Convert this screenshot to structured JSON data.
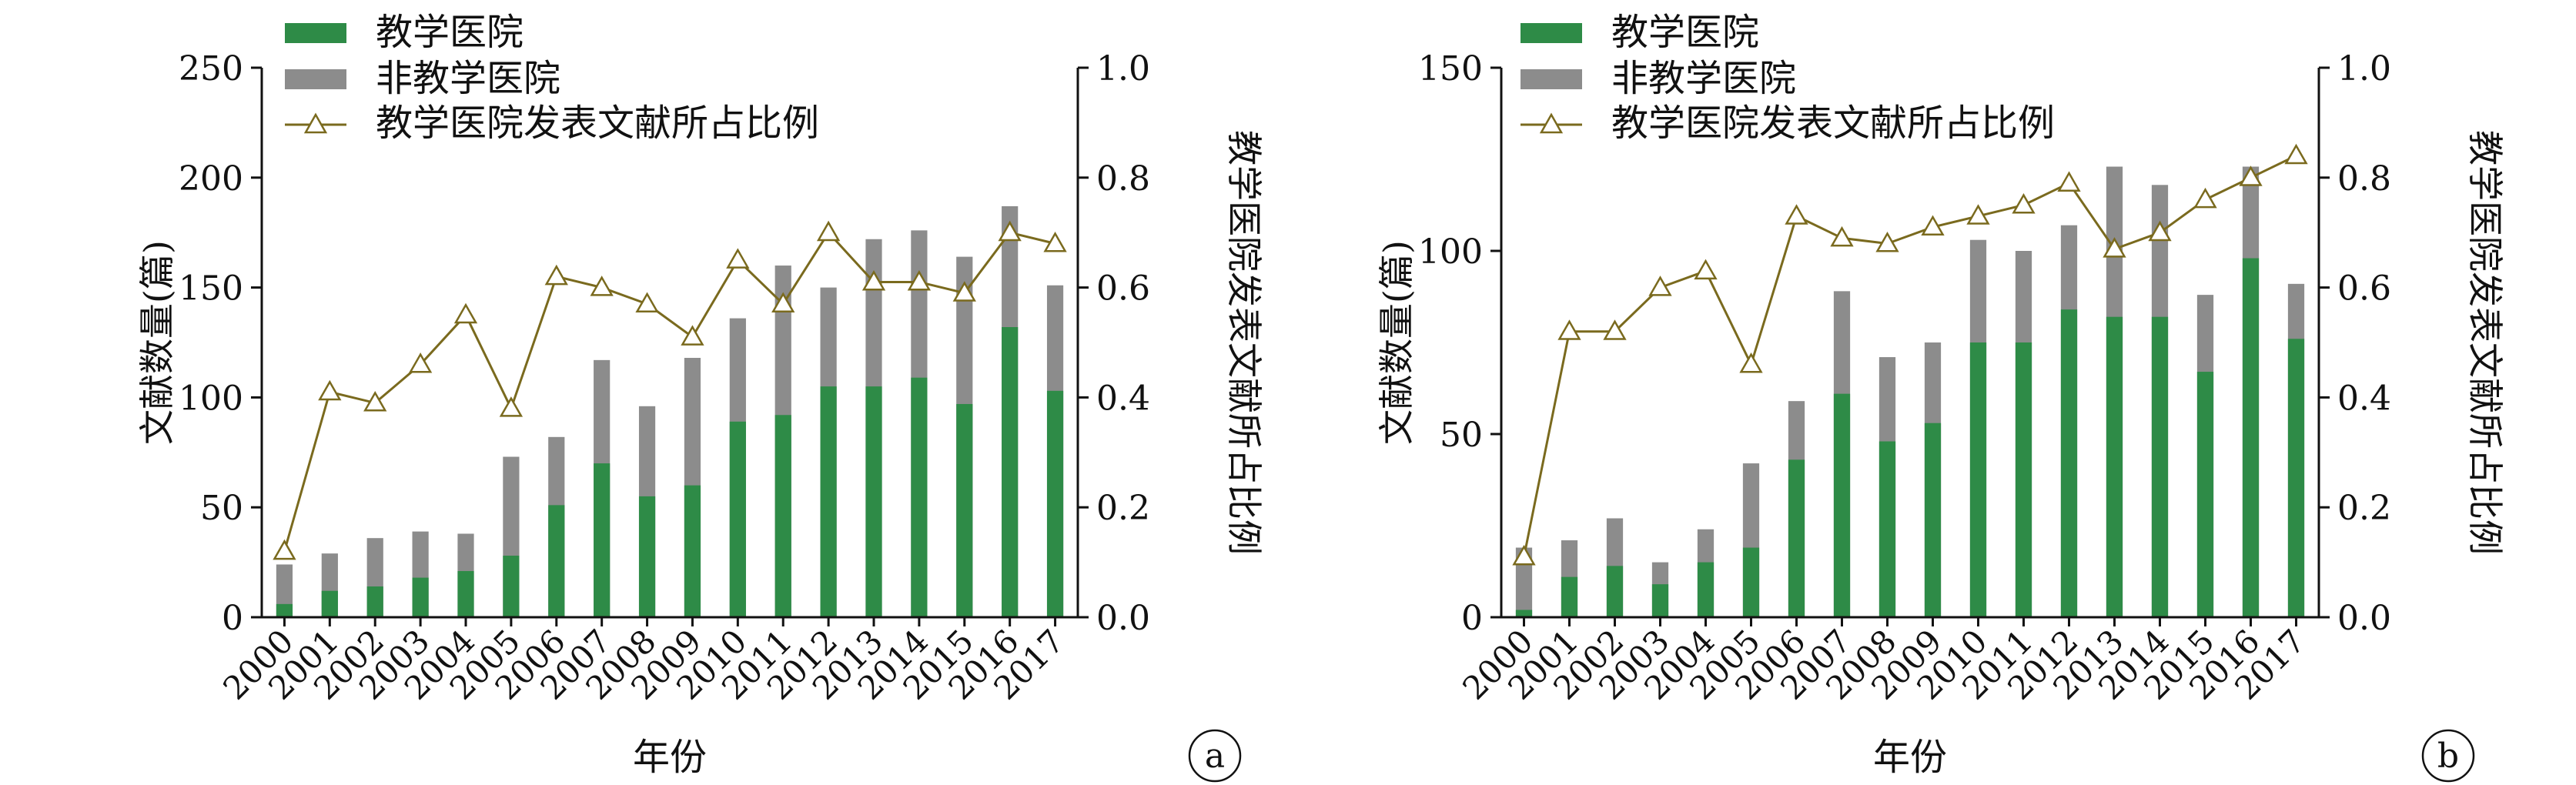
{
  "chart_data": [
    {
      "panel_label": "a",
      "type": "bar",
      "bar_mode": "overlay",
      "categories": [
        "2000",
        "2001",
        "2002",
        "2003",
        "2004",
        "2005",
        "2006",
        "2007",
        "2008",
        "2009",
        "2010",
        "2011",
        "2012",
        "2013",
        "2014",
        "2015",
        "2016",
        "2017"
      ],
      "series": [
        {
          "name": "教学医院",
          "type": "bar",
          "axis": "left",
          "color": "#2e8b47",
          "values": [
            6,
            12,
            14,
            18,
            21,
            28,
            51,
            70,
            55,
            60,
            89,
            92,
            105,
            105,
            109,
            97,
            132,
            103
          ]
        },
        {
          "name": "非教学医院",
          "type": "bar",
          "axis": "left",
          "color": "#8c8c8c",
          "values": [
            24,
            29,
            36,
            39,
            38,
            73,
            82,
            117,
            96,
            118,
            136,
            160,
            150,
            172,
            176,
            164,
            187,
            151
          ]
        },
        {
          "name": "教学医院发表文献所占比例",
          "type": "line",
          "axis": "right",
          "color": "#7a6a1e",
          "marker": "triangle-open",
          "values": [
            0.12,
            0.41,
            0.39,
            0.46,
            0.55,
            0.38,
            0.62,
            0.6,
            0.57,
            0.51,
            0.65,
            0.57,
            0.7,
            0.61,
            0.61,
            0.59,
            0.7,
            0.68
          ]
        }
      ],
      "xlabel": "年份",
      "ylabel": "文献数量(篇)",
      "y2label": "教学医院发表文献所占比例",
      "ylim": [
        0,
        250
      ],
      "yticks": [
        "0",
        "50",
        "100",
        "150",
        "200",
        "250"
      ],
      "y2lim": [
        0,
        1
      ],
      "y2ticks": [
        "0.0",
        "0.2",
        "0.4",
        "0.6",
        "0.8",
        "1.0"
      ],
      "legend": "top-left",
      "grid": false
    },
    {
      "panel_label": "b",
      "type": "bar",
      "bar_mode": "overlay",
      "categories": [
        "2000",
        "2001",
        "2002",
        "2003",
        "2004",
        "2005",
        "2006",
        "2007",
        "2008",
        "2009",
        "2010",
        "2011",
        "2012",
        "2013",
        "2014",
        "2015",
        "2016",
        "2017"
      ],
      "series": [
        {
          "name": "教学医院",
          "type": "bar",
          "axis": "left",
          "color": "#2e8b47",
          "values": [
            2,
            11,
            14,
            9,
            15,
            19,
            43,
            61,
            48,
            53,
            75,
            75,
            84,
            82,
            82,
            67,
            98,
            76
          ]
        },
        {
          "name": "非教学医院",
          "type": "bar",
          "axis": "left",
          "color": "#8c8c8c",
          "values": [
            19,
            21,
            27,
            15,
            24,
            42,
            59,
            89,
            71,
            75,
            103,
            100,
            107,
            123,
            118,
            88,
            123,
            91
          ]
        },
        {
          "name": "教学医院发表文献所占比例",
          "type": "line",
          "axis": "right",
          "color": "#7a6a1e",
          "marker": "triangle-open",
          "values": [
            0.11,
            0.52,
            0.52,
            0.6,
            0.63,
            0.46,
            0.73,
            0.69,
            0.68,
            0.71,
            0.73,
            0.75,
            0.79,
            0.67,
            0.7,
            0.76,
            0.8,
            0.84
          ]
        }
      ],
      "xlabel": "年份",
      "ylabel": "文献数量(篇)",
      "y2label": "教学医院发表文献所占比例",
      "ylim": [
        0,
        150
      ],
      "yticks": [
        "0",
        "50",
        "100",
        "150"
      ],
      "y2lim": [
        0,
        1
      ],
      "y2ticks": [
        "0.0",
        "0.2",
        "0.4",
        "0.6",
        "0.8",
        "1.0"
      ],
      "legend": "top-left",
      "grid": false
    }
  ]
}
